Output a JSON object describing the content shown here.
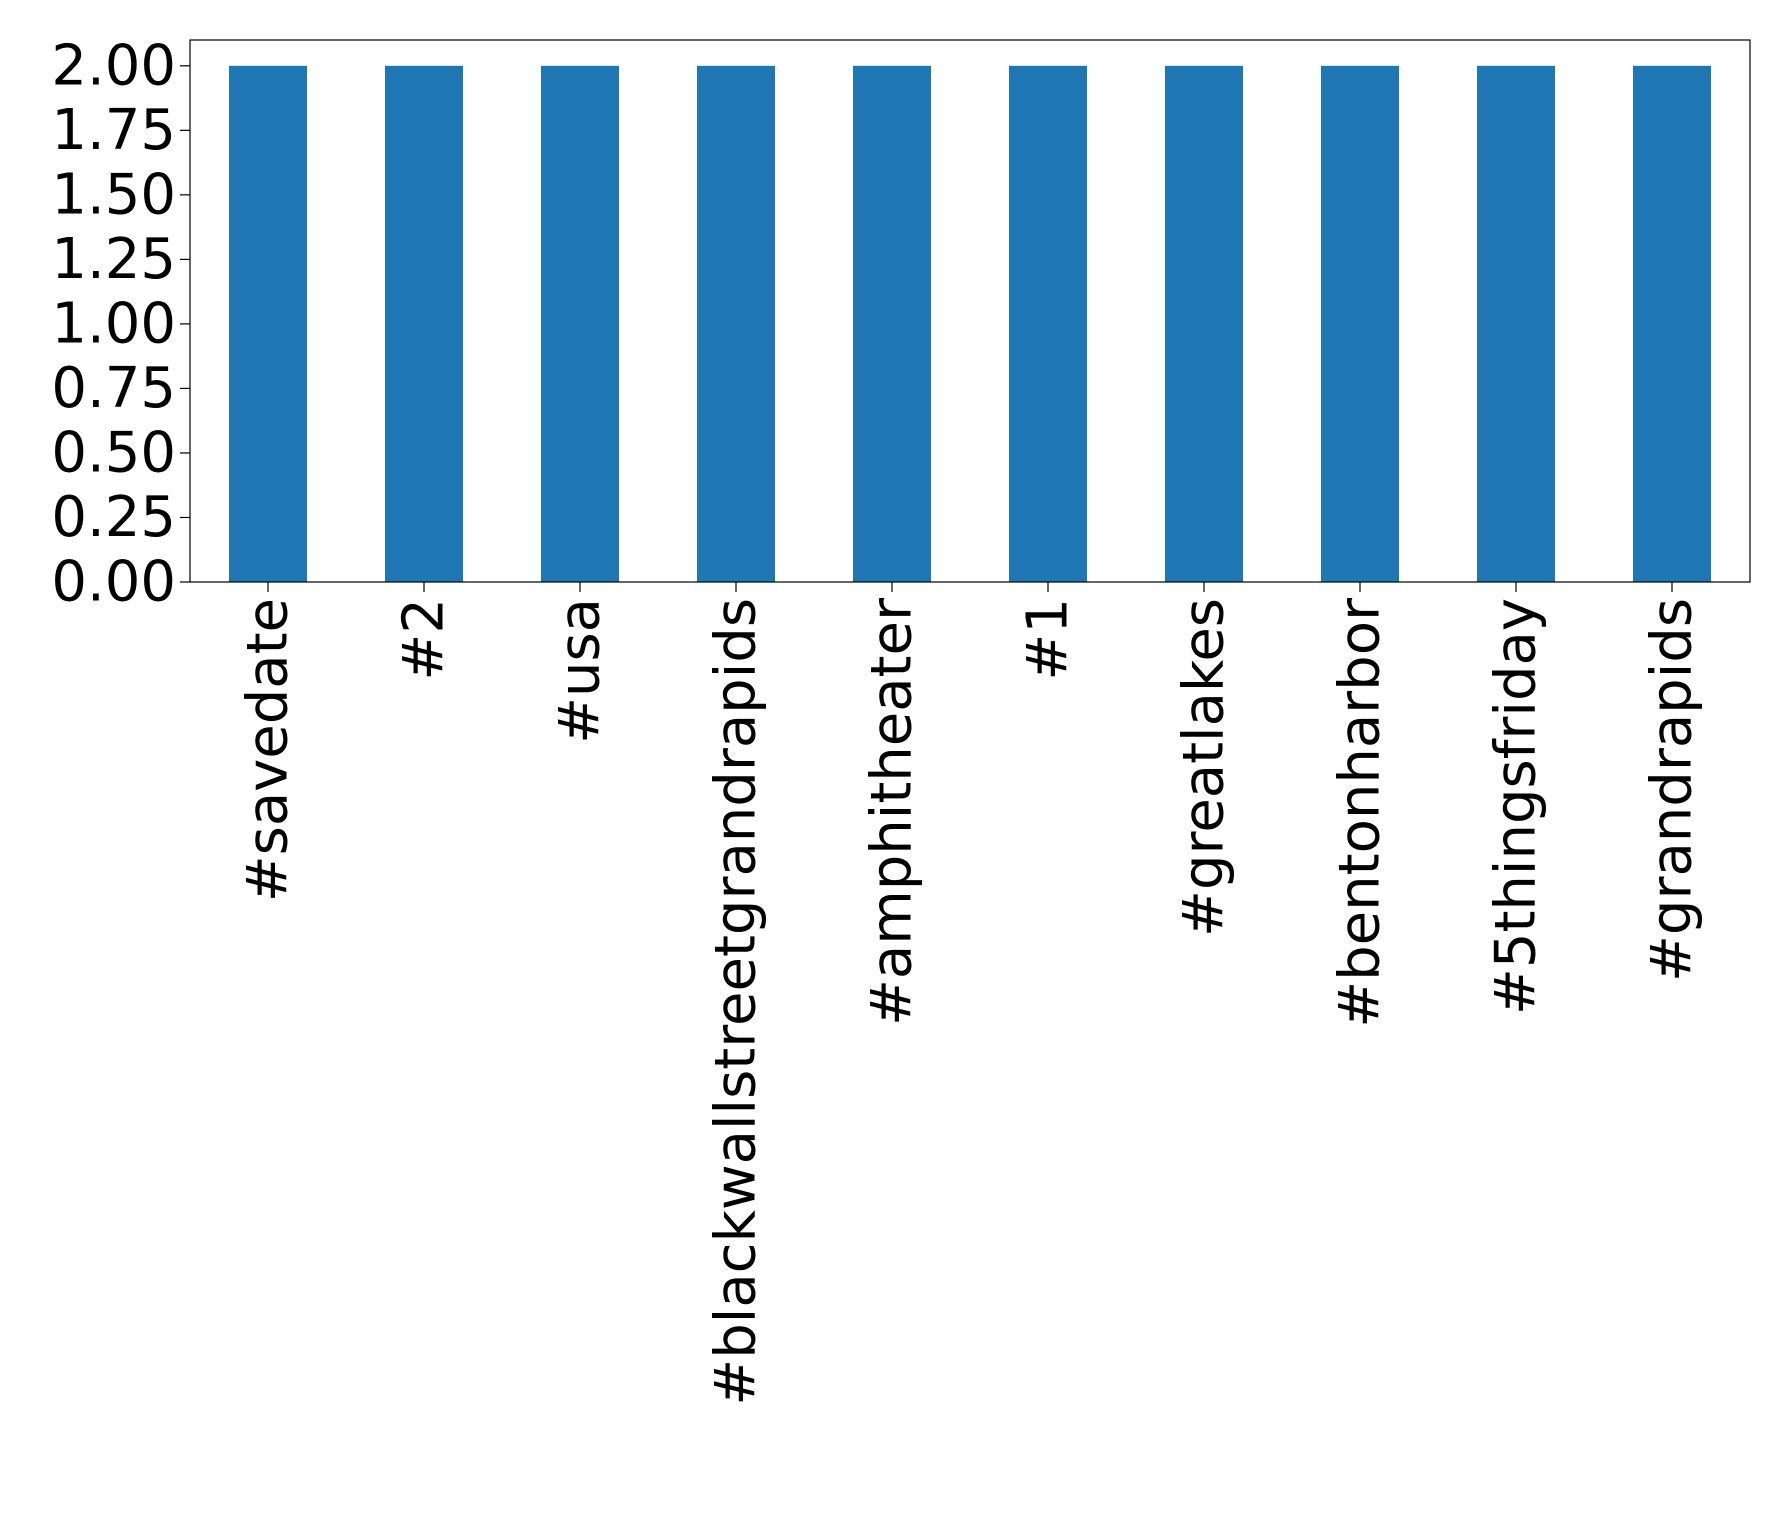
{
  "chart_data": {
    "type": "bar",
    "title": "",
    "xlabel": "",
    "ylabel": "",
    "categories": [
      "#savedate",
      "#2",
      "#usa",
      "#blackwallstreetgrandrapids",
      "#amphitheater",
      "#1",
      "#greatlakes",
      "#bentonharbor",
      "#5thingsfriday",
      "#grandrapids"
    ],
    "values": [
      2,
      2,
      2,
      2,
      2,
      2,
      2,
      2,
      2,
      2
    ],
    "ylim": [
      0,
      2.1
    ],
    "yticks": [
      "0.00",
      "0.25",
      "0.50",
      "0.75",
      "1.00",
      "1.25",
      "1.50",
      "1.75",
      "2.00"
    ],
    "bar_color": "#1f77b4",
    "grid": false,
    "legend": false
  }
}
